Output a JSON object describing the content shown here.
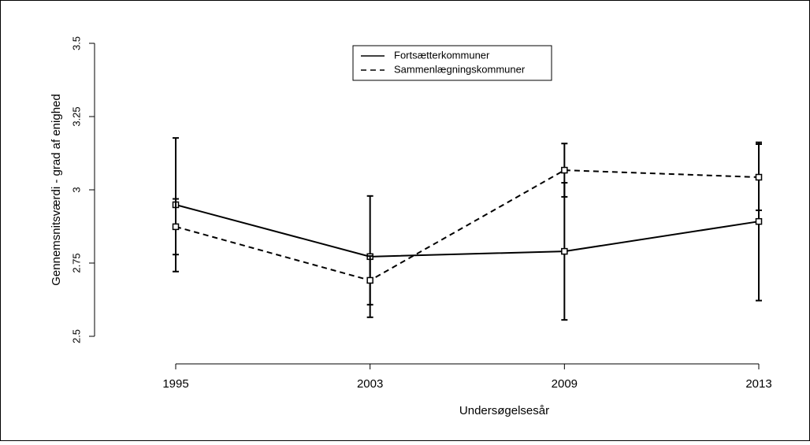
{
  "chart_data": {
    "type": "line",
    "xlabel": "Undersøgelsesår",
    "ylabel": "Gennemsnitsværdi - grad af enighed",
    "categories": [
      "1995",
      "2003",
      "2009",
      "2013"
    ],
    "series": [
      {
        "name": "Fortsætterkommuner",
        "color": "#000000",
        "dash": "solid",
        "values": [
          2.949,
          2.772,
          2.79,
          2.892
        ],
        "errors": [
          0.228,
          0.207,
          0.234,
          0.27
        ]
      },
      {
        "name": "Sammenlægningskommuner",
        "color": "#000000",
        "dash": "dashed",
        "values": [
          2.874,
          2.691,
          3.067,
          3.043
        ],
        "errors": [
          0.095,
          0.083,
          0.091,
          0.113
        ]
      }
    ],
    "ylim": [
      2.5,
      3.5
    ],
    "yticks": [
      2.5,
      2.75,
      3,
      3.25,
      3.5
    ],
    "legend": "top"
  }
}
